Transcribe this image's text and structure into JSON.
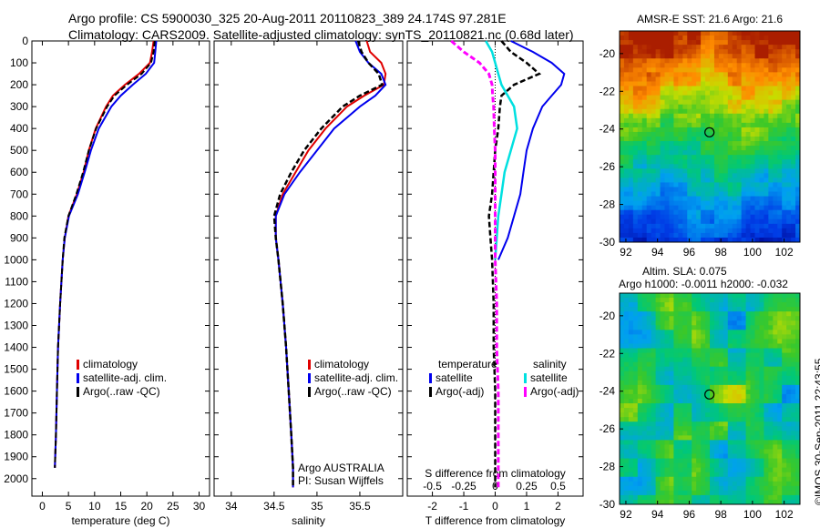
{
  "header": {
    "line1": "Argo profile: CS 5900030_325 20-Aug-2011 20110823_389 24.174S 97.281E",
    "line2": "Climatology: CARS2009. Satellite-adjusted climatology: synTS_20110821.nc (0.68d later)"
  },
  "footer": {
    "stamp": "©IMOS 30-Sep-2011 22:43:55"
  },
  "colors": {
    "climatology": "#e00000",
    "satellite": "#0000ee",
    "argo": "#000000",
    "cyan": "#00e0e0",
    "magenta": "#ff00ff"
  },
  "chart_data": [
    {
      "type": "line",
      "xlabel": "temperature (deg C)",
      "xlim": [
        -2,
        32
      ],
      "xticks": [
        "0",
        "5",
        "10",
        "15",
        "20",
        "25",
        "30"
      ],
      "ylim": [
        2080,
        0
      ],
      "yticks": [
        "0",
        "100",
        "200",
        "300",
        "400",
        "500",
        "600",
        "700",
        "800",
        "900",
        "1000",
        "1100",
        "1200",
        "1300",
        "1400",
        "1500",
        "1600",
        "1700",
        "1800",
        "1900",
        "2000"
      ],
      "legend": [
        "climatology",
        "satellite-adj. clim.",
        "Argo(..raw -QC)"
      ],
      "series": [
        {
          "name": "climatology",
          "depth": [
            0,
            50,
            100,
            150,
            200,
            250,
            300,
            400,
            500,
            600,
            700,
            800,
            900,
            1000,
            1200,
            1400,
            1600,
            1800,
            1950
          ],
          "values": [
            21.3,
            21.0,
            20.6,
            18.5,
            15.8,
            13.5,
            12.2,
            10.2,
            8.9,
            7.9,
            6.6,
            5.0,
            4.3,
            3.9,
            3.4,
            3.0,
            2.8,
            2.6,
            2.4
          ]
        },
        {
          "name": "satellite-adj. clim.",
          "depth": [
            0,
            50,
            100,
            150,
            200,
            250,
            300,
            400,
            500,
            600,
            700,
            800,
            900,
            1000,
            1200,
            1400,
            1600,
            1800,
            1950
          ],
          "values": [
            21.8,
            21.6,
            21.4,
            19.8,
            17.3,
            15.0,
            13.2,
            10.8,
            9.3,
            8.1,
            6.8,
            5.1,
            4.3,
            3.9,
            3.4,
            3.0,
            2.8,
            2.6,
            2.4
          ]
        },
        {
          "name": "Argo(..raw -QC)",
          "depth": [
            0,
            50,
            100,
            150,
            200,
            250,
            300,
            400,
            500,
            600,
            700,
            800,
            900,
            1000,
            1200,
            1400,
            1600,
            1800,
            1950
          ],
          "values": [
            21.5,
            21.3,
            20.8,
            19.0,
            16.2,
            13.8,
            12.4,
            10.3,
            8.9,
            7.8,
            6.5,
            5.0,
            4.2,
            3.9,
            3.4,
            3.0,
            2.8,
            2.6,
            2.4
          ]
        }
      ]
    },
    {
      "type": "line",
      "xlabel": "salinity",
      "xlim": [
        33.8,
        36.0
      ],
      "xticks": [
        "34",
        "34.5",
        "35",
        "35.5"
      ],
      "ylim": [
        2080,
        0
      ],
      "legend": [
        "climatology",
        "satellite-adj. clim.",
        "Argo(..raw -QC)"
      ],
      "annotations": [
        "Argo AUSTRALIA",
        "PI: Susan Wijffels"
      ],
      "series": [
        {
          "name": "climatology",
          "depth": [
            0,
            50,
            100,
            150,
            200,
            250,
            300,
            400,
            500,
            600,
            700,
            800,
            900,
            1000,
            1200,
            1400,
            1600,
            1800,
            1950,
            2040
          ],
          "values": [
            35.58,
            35.62,
            35.75,
            35.8,
            35.78,
            35.55,
            35.35,
            35.1,
            34.9,
            34.75,
            34.6,
            34.52,
            34.52,
            34.55,
            34.6,
            34.64,
            34.67,
            34.7,
            34.72,
            34.72
          ]
        },
        {
          "name": "satellite-adj. clim.",
          "depth": [
            0,
            50,
            100,
            150,
            200,
            250,
            300,
            400,
            500,
            600,
            700,
            800,
            900,
            1000,
            1200,
            1400,
            1600,
            1800,
            1950,
            2040
          ],
          "values": [
            35.45,
            35.5,
            35.6,
            35.75,
            35.8,
            35.68,
            35.5,
            35.2,
            35.0,
            34.8,
            34.62,
            34.52,
            34.52,
            34.55,
            34.6,
            34.64,
            34.67,
            34.7,
            34.72,
            34.72
          ]
        },
        {
          "name": "Argo(..raw -QC)",
          "depth": [
            0,
            50,
            100,
            150,
            200,
            250,
            300,
            400,
            500,
            600,
            700,
            800,
            900,
            1000,
            1200,
            1400,
            1600,
            1800,
            1950,
            2040
          ],
          "values": [
            35.48,
            35.52,
            35.6,
            35.72,
            35.76,
            35.5,
            35.3,
            35.05,
            34.85,
            34.7,
            34.57,
            34.5,
            34.52,
            34.55,
            34.6,
            34.64,
            34.67,
            34.7,
            34.72,
            34.72
          ]
        }
      ]
    },
    {
      "type": "line",
      "xlabel": "T difference from climatology",
      "xlabel_top": "S difference from climatology",
      "xlim": [
        -2.8,
        2.8
      ],
      "xticks": [
        "-2",
        "-1",
        "0",
        "1",
        "2"
      ],
      "top_ticks": [
        "-0.5",
        "-0.25",
        "0",
        "0.25",
        "0.5"
      ],
      "ylim": [
        2080,
        0
      ],
      "legend_temperature_title": "temperature",
      "legend_salinity_title": "salinity",
      "legend": [
        "satellite",
        "Argo(-adj)",
        "satellite",
        "Argo(-adj)"
      ],
      "series": [
        {
          "name": "satellite",
          "depth": [
            0,
            50,
            100,
            150,
            200,
            250,
            300,
            400,
            500,
            600,
            700,
            800,
            900,
            1000
          ],
          "values": [
            0.5,
            1.2,
            1.8,
            2.2,
            2.1,
            1.8,
            1.5,
            1.2,
            1.0,
            0.9,
            0.8,
            0.6,
            0.4,
            0.1
          ]
        },
        {
          "name": "Argo(-adj)",
          "depth": [
            0,
            50,
            100,
            150,
            200,
            250,
            300,
            400,
            500,
            600,
            700,
            800,
            900,
            1000,
            1200,
            1400,
            1600,
            1800,
            1950,
            2040
          ],
          "values": [
            0.2,
            0.5,
            1.0,
            1.4,
            0.6,
            0.2,
            0.15,
            0.1,
            0.0,
            -0.05,
            -0.1,
            -0.2,
            -0.15,
            -0.1,
            -0.05,
            -0.05,
            0.0,
            0.0,
            0.0,
            0.0
          ]
        },
        {
          "name": "satellite",
          "depth": [
            0,
            50,
            100,
            150,
            200,
            250,
            300,
            400,
            500,
            600,
            700,
            800,
            900,
            1000
          ],
          "values": [
            -0.3,
            -0.1,
            0.0,
            0.1,
            0.2,
            0.4,
            0.6,
            0.7,
            0.5,
            0.3,
            0.2,
            0.1,
            0.05,
            0.0
          ]
        },
        {
          "name": "Argo(-adj)",
          "depth": [
            0,
            50,
            100,
            150,
            200,
            250,
            300,
            400,
            500,
            600,
            700,
            800,
            900,
            1000,
            1200,
            1400,
            1600,
            1800,
            1950,
            2040
          ],
          "values": [
            -1.4,
            -1.0,
            -0.5,
            -0.2,
            -0.1,
            -0.08,
            -0.05,
            -0.03,
            0.0,
            0.0,
            0.0,
            0.0,
            0.0,
            0.0,
            0.05,
            0.05,
            0.1,
            0.1,
            0.1,
            0.1
          ]
        }
      ]
    },
    {
      "type": "heatmap",
      "title": "AMSR-E SST: 21.6 Argo: 21.6",
      "xticks": [
        "92",
        "94",
        "96",
        "98",
        "100",
        "102"
      ],
      "yticks": [
        "-20",
        "-22",
        "-24",
        "-26",
        "-28",
        "-30"
      ],
      "marker": {
        "lon": 97.281,
        "lat": -24.174
      }
    },
    {
      "type": "heatmap",
      "title": "Altim. SLA: 0.075",
      "subtitle": "Argo h1000: -0.0011 h2000: -0.032",
      "xticks": [
        "92",
        "94",
        "96",
        "98",
        "100",
        "102"
      ],
      "yticks": [
        "-20",
        "-22",
        "-24",
        "-26",
        "-28",
        "-30"
      ],
      "marker": {
        "lon": 97.281,
        "lat": -24.174
      }
    }
  ]
}
